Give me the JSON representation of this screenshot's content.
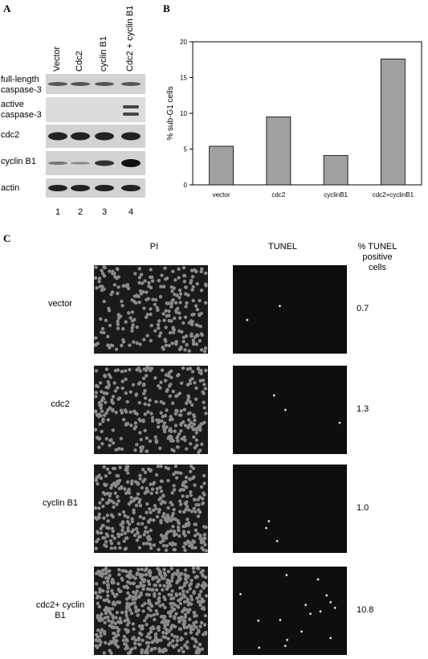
{
  "panel_a": {
    "label": "A",
    "lanes": [
      "Vector",
      "Cdc2",
      "cyclin B1",
      "Cdc2 + cyclin B1"
    ],
    "rows": [
      "full-length caspase-3",
      "active caspase-3",
      "cdc2",
      "cyclin B1",
      "actin"
    ],
    "lane_numbers": [
      "1",
      "2",
      "3",
      "4"
    ]
  },
  "chart_data": {
    "type": "bar",
    "label": "B",
    "ylabel": "% sub-G1 cells",
    "categories": [
      "vector",
      "cdc2",
      "cyclinB1",
      "cdc2+cyclinB1"
    ],
    "values": [
      5.4,
      9.5,
      4.1,
      17.6
    ],
    "color": "#a0a0a0",
    "ylim": [
      0,
      20
    ],
    "yticks": [
      0,
      5,
      10,
      15,
      20
    ]
  },
  "panel_c": {
    "label": "C",
    "columns": [
      "PI",
      "TUNEL",
      "% TUNEL positive cells"
    ],
    "rows": [
      {
        "name": "vector",
        "value": "0.7"
      },
      {
        "name": "cdc2",
        "value": "1.3"
      },
      {
        "name": "cyclin B1",
        "value": "1.0"
      },
      {
        "name": "cdc2+ cyclin B1",
        "value": "10.8"
      }
    ]
  }
}
